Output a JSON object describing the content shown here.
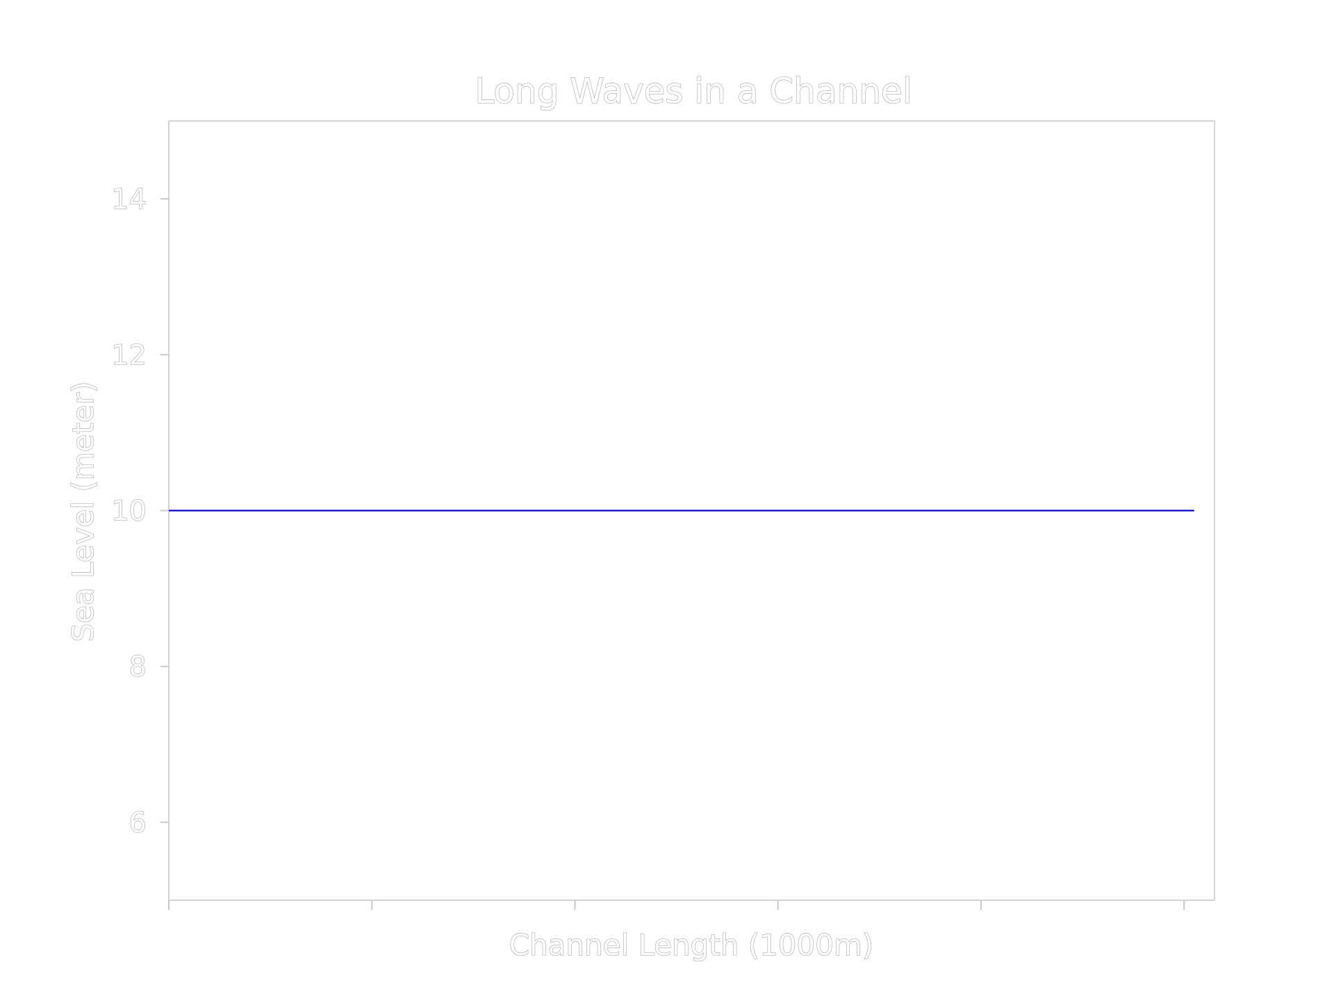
{
  "chart_data": {
    "type": "line",
    "title": "Long Waves in a Channel",
    "xlabel": "Channel Length (1000m)",
    "ylabel": "Sea Level (meter)",
    "ylim": [
      5,
      15
    ],
    "yticks": [
      6,
      8,
      10,
      12,
      14
    ],
    "xlim": [
      0,
      5.15
    ],
    "xticks": [
      0,
      1,
      2,
      3,
      4,
      5
    ],
    "xtick_labels": [
      "",
      "",
      "",
      "",
      "",
      ""
    ],
    "grid": false,
    "series": [
      {
        "color": "#0000cc",
        "x": [
          0,
          5.05
        ],
        "y": [
          10,
          10
        ]
      }
    ]
  }
}
